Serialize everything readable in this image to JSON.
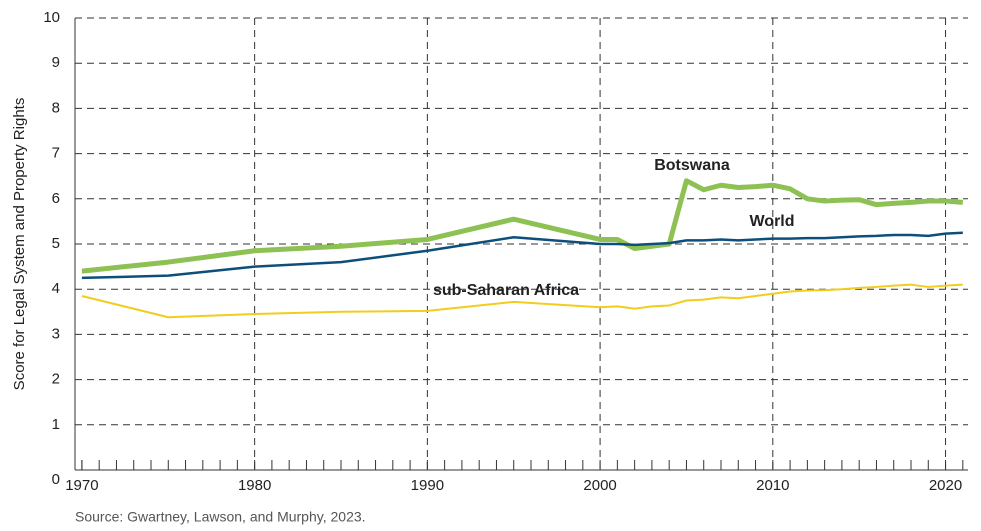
{
  "chart_data": {
    "type": "line",
    "y_label": "Score for Legal System and Property Rights",
    "source": "Source: Gwartney, Lawson, and Murphy, 2023.",
    "annotations": [
      "Botswana",
      "World",
      "sub-Saharan Africa"
    ],
    "x": [
      1970,
      1975,
      1980,
      1985,
      1990,
      1995,
      2000,
      2001,
      2002,
      2003,
      2004,
      2005,
      2006,
      2007,
      2008,
      2009,
      2010,
      2011,
      2012,
      2013,
      2014,
      2015,
      2016,
      2017,
      2018,
      2019,
      2020,
      2021
    ],
    "series": [
      {
        "name": "Botswana",
        "color": "#8dc153",
        "values": [
          4.4,
          4.6,
          4.85,
          4.95,
          5.1,
          5.55,
          5.1,
          5.1,
          4.9,
          4.95,
          5.0,
          6.4,
          6.2,
          6.3,
          6.25,
          6.27,
          6.3,
          6.22,
          6.0,
          5.95,
          5.97,
          5.98,
          5.87,
          5.9,
          5.92,
          5.95,
          5.95,
          5.92
        ]
      },
      {
        "name": "World",
        "color": "#0d4f7a",
        "values": [
          4.25,
          4.3,
          4.5,
          4.6,
          4.85,
          5.15,
          5.0,
          5.0,
          4.98,
          5.0,
          5.02,
          5.08,
          5.08,
          5.1,
          5.08,
          5.1,
          5.12,
          5.12,
          5.13,
          5.13,
          5.15,
          5.17,
          5.18,
          5.2,
          5.2,
          5.18,
          5.23,
          5.25
        ]
      },
      {
        "name": "sub-Saharan Africa",
        "color": "#f2cd1f",
        "values": [
          3.85,
          3.38,
          3.45,
          3.5,
          3.52,
          3.72,
          3.6,
          3.62,
          3.57,
          3.62,
          3.64,
          3.75,
          3.77,
          3.82,
          3.8,
          3.85,
          3.9,
          3.95,
          3.97,
          3.98,
          4.0,
          4.03,
          4.05,
          4.08,
          4.1,
          4.05,
          4.08,
          4.1
        ]
      }
    ],
    "xlim": [
      1969.6,
      2021.3
    ],
    "xticks": [
      1970,
      1980,
      1990,
      2000,
      2010,
      2020
    ],
    "ylim": [
      0,
      10
    ],
    "yticks": [
      0,
      1,
      2,
      3,
      4,
      5,
      6,
      7,
      8,
      9,
      10
    ],
    "grid": true
  }
}
